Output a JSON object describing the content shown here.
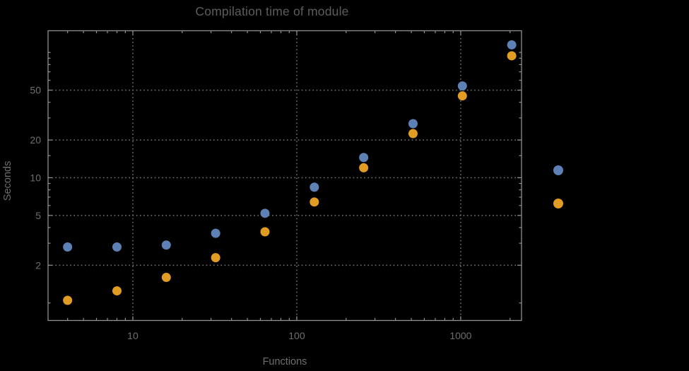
{
  "window": {
    "background": "#000000"
  },
  "colors": {
    "frame": "#8f8f8f",
    "grid": "#787878",
    "tick_label": "#6e6e6e",
    "axis_label": "#6e6e6e",
    "title": "#5d5d5d",
    "series_blue": "#5e81b5",
    "series_orange": "#e19c24"
  },
  "chart_data": {
    "type": "scatter",
    "title": "Compilation time of module",
    "xlabel": "Functions",
    "ylabel": "Seconds",
    "x_scale": "log",
    "y_scale": "log",
    "xlim": [
      3.04,
      2350
    ],
    "ylim": [
      0.725,
      149
    ],
    "grid": "dotted lines at labeled major ticks only",
    "legend_position": "right-of-plot, marker-only (no visible text)",
    "x_ticks": [
      10,
      100,
      1000
    ],
    "x_tick_labels": [
      "10",
      "100",
      "1000"
    ],
    "x_minor_ticks": [
      4,
      5,
      6,
      7,
      8,
      9,
      20,
      30,
      40,
      50,
      60,
      70,
      80,
      90,
      200,
      300,
      400,
      500,
      600,
      700,
      800,
      900,
      2000
    ],
    "y_ticks": [
      2,
      5,
      10,
      20,
      50
    ],
    "y_tick_labels": [
      "2",
      "5",
      "10",
      "20",
      "50"
    ],
    "y_minor_ticks": [
      1,
      3,
      4,
      6,
      7,
      8,
      9,
      15,
      30,
      40,
      60,
      70,
      80,
      90,
      100
    ],
    "x": [
      4,
      8,
      16,
      32,
      64,
      128,
      256,
      512,
      1024,
      2048
    ],
    "series": [
      {
        "name": "series-blue",
        "marker": "filled-disk",
        "color": "#5e81b5",
        "values": [
          2.8,
          2.8,
          2.9,
          3.6,
          5.2,
          8.4,
          14.5,
          27,
          54,
          115
        ]
      },
      {
        "name": "series-orange",
        "marker": "filled-disk",
        "color": "#e19c24",
        "values": [
          1.05,
          1.25,
          1.6,
          2.3,
          3.7,
          6.4,
          12,
          22.5,
          45,
          94
        ]
      }
    ]
  }
}
